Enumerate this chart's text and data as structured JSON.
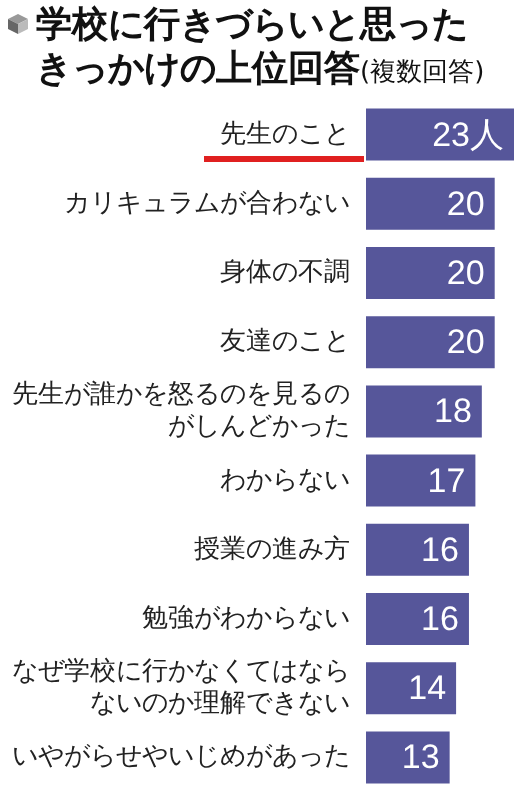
{
  "chart_data": {
    "type": "bar",
    "orientation": "horizontal",
    "title": "学校に行きづらいと思ったきっかけの上位回答",
    "subtitle": "(複数回答)",
    "categories": [
      "先生のこと",
      "カリキュラムが合わない",
      "身体の不調",
      "友達のこと",
      "先生が誰かを怒るのを見るのがしんどかった",
      "わからない",
      "授業の進み方",
      "勉強がわからない",
      "なぜ学校に行かなくてはならないのか理解できない",
      "いやがらせやいじめがあった"
    ],
    "values": [
      23,
      20,
      20,
      20,
      18,
      17,
      16,
      16,
      14,
      13
    ],
    "value_labels": [
      "23人",
      "20",
      "20",
      "20",
      "18",
      "17",
      "16",
      "16",
      "14",
      "13"
    ],
    "color": "#56569a"
  }
}
